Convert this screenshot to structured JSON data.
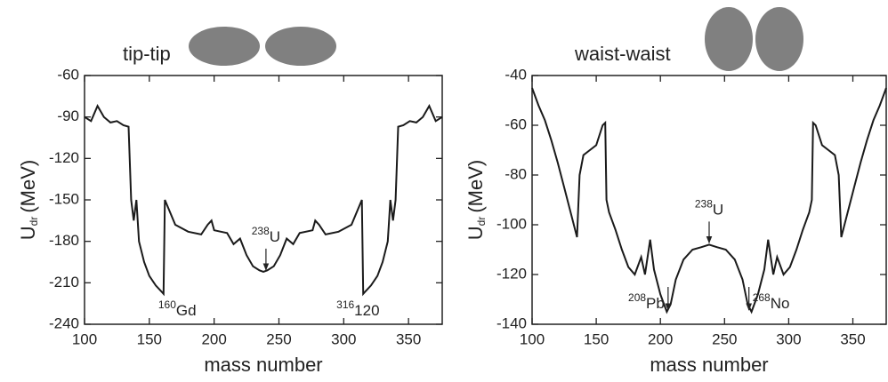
{
  "chart_data": [
    {
      "type": "line",
      "title": "tip-tip",
      "xlabel": "mass number",
      "ylabel": {
        "text": "U",
        "sub": "dr",
        "unit": "(MeV)"
      },
      "color": "#1a1a1a",
      "xlim": [
        100,
        376
      ],
      "ylim": [
        -240,
        -60
      ],
      "xticks": [
        100,
        150,
        200,
        250,
        300,
        350
      ],
      "yticks": [
        -240,
        -210,
        -180,
        -150,
        -120,
        -90,
        -60
      ],
      "x": [
        100,
        105,
        110,
        115,
        120,
        125,
        130,
        134,
        136,
        138,
        140,
        142,
        146,
        150,
        155,
        160,
        161,
        162,
        170,
        180,
        190,
        195,
        198,
        200,
        210,
        215,
        220,
        225,
        230,
        235,
        238,
        241,
        246,
        251,
        256,
        261,
        266,
        276,
        278,
        281,
        286,
        296,
        306,
        314,
        315,
        316,
        321,
        326,
        330,
        334,
        336,
        338,
        340,
        342,
        346,
        351,
        356,
        361,
        366,
        371,
        376
      ],
      "values": [
        -90,
        -93,
        -82,
        -90,
        -94,
        -93,
        -96,
        -97,
        -150,
        -165,
        -150,
        -180,
        -195,
        -205,
        -212,
        -217,
        -218,
        -150,
        -168,
        -173,
        -175,
        -168,
        -165,
        -172,
        -174,
        -182,
        -178,
        -190,
        -198,
        -201,
        -202,
        -201,
        -198,
        -190,
        -178,
        -182,
        -174,
        -172,
        -165,
        -168,
        -175,
        -173,
        -168,
        -150,
        -218,
        -217,
        -212,
        -205,
        -195,
        -180,
        -150,
        -165,
        -150,
        -97,
        -96,
        -93,
        -94,
        -90,
        -82,
        -93,
        -90
      ],
      "annotations": [
        {
          "sup": "160",
          "text": "Gd",
          "x": 161,
          "y": -218,
          "arrow": false
        },
        {
          "sup": "238",
          "text": "U",
          "x": 240,
          "y": -202,
          "arrow": true
        },
        {
          "sup": "316",
          "text": "120",
          "x": 315,
          "y": -218,
          "arrow": false
        }
      ]
    },
    {
      "type": "line",
      "title": "waist-waist",
      "xlabel": "mass number",
      "ylabel": {
        "text": "U",
        "sub": "dr",
        "unit": "(MeV)"
      },
      "color": "#1a1a1a",
      "xlim": [
        100,
        376
      ],
      "ylim": [
        -140,
        -40
      ],
      "xticks": [
        100,
        150,
        200,
        250,
        300,
        350
      ],
      "yticks": [
        -140,
        -120,
        -100,
        -80,
        -60,
        -40
      ],
      "x": [
        100,
        105,
        110,
        115,
        120,
        125,
        130,
        135,
        137,
        140,
        145,
        150,
        155,
        157,
        158,
        160,
        165,
        170,
        175,
        180,
        185,
        188,
        192,
        195,
        200,
        205,
        208,
        212,
        218,
        225,
        232,
        238,
        244,
        251,
        258,
        264,
        268,
        271,
        276,
        281,
        284,
        288,
        291,
        296,
        301,
        306,
        311,
        316,
        318,
        319,
        321,
        326,
        331,
        336,
        339,
        341,
        346,
        351,
        356,
        361,
        366,
        371,
        376
      ],
      "values": [
        -45,
        -52,
        -58,
        -66,
        -75,
        -85,
        -95,
        -105,
        -80,
        -72,
        -70,
        -68,
        -60,
        -59,
        -90,
        -95,
        -102,
        -110,
        -117,
        -120,
        -113,
        -120,
        -106,
        -118,
        -128,
        -135,
        -132,
        -122,
        -114,
        -110,
        -109,
        -108,
        -109,
        -110,
        -114,
        -122,
        -132,
        -135,
        -128,
        -118,
        -106,
        -120,
        -113,
        -120,
        -117,
        -110,
        -102,
        -95,
        -90,
        -59,
        -60,
        -68,
        -70,
        -72,
        -80,
        -105,
        -95,
        -85,
        -75,
        -66,
        -58,
        -52,
        -45
      ],
      "annotations": [
        {
          "sup": "208",
          "text": "Pb",
          "x": 206,
          "y": -135,
          "arrow": true
        },
        {
          "sup": "238",
          "text": "U",
          "x": 238,
          "y": -108,
          "arrow": true
        },
        {
          "sup": "268",
          "text": "No",
          "x": 269,
          "y": -135,
          "arrow": true
        }
      ]
    }
  ]
}
